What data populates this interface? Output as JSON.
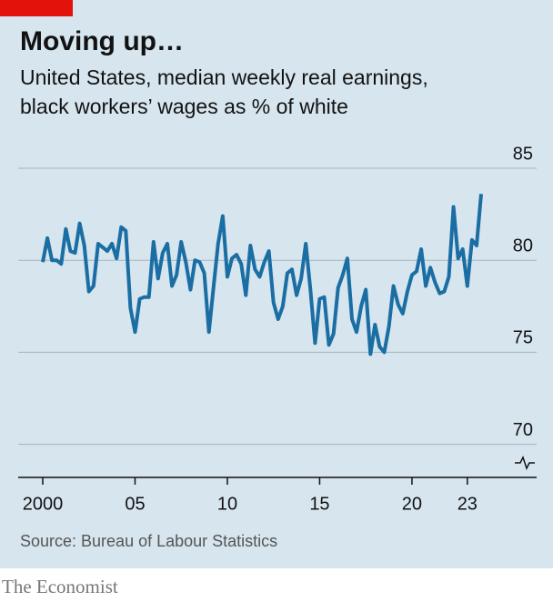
{
  "chart_data": {
    "type": "line",
    "title": "Moving up…",
    "subtitle": [
      "United States, median weekly real earnings,",
      "black workers’ wages as % of white"
    ],
    "source": "Source: Bureau of Labour Statistics",
    "brand": "The Economist",
    "x": [
      2000,
      2000.25,
      2000.5,
      2000.75,
      2001,
      2001.25,
      2001.5,
      2001.75,
      2002,
      2002.25,
      2002.5,
      2002.75,
      2003,
      2003.25,
      2003.5,
      2003.75,
      2004,
      2004.25,
      2004.5,
      2004.75,
      2005,
      2005.25,
      2005.5,
      2005.75,
      2006,
      2006.25,
      2006.5,
      2006.75,
      2007,
      2007.25,
      2007.5,
      2007.75,
      2008,
      2008.25,
      2008.5,
      2008.75,
      2009,
      2009.25,
      2009.5,
      2009.75,
      2010,
      2010.25,
      2010.5,
      2010.75,
      2011,
      2011.25,
      2011.5,
      2011.75,
      2012,
      2012.25,
      2012.5,
      2012.75,
      2013,
      2013.25,
      2013.5,
      2013.75,
      2014,
      2014.25,
      2014.5,
      2014.75,
      2015,
      2015.25,
      2015.5,
      2015.75,
      2016,
      2016.25,
      2016.5,
      2016.75,
      2017,
      2017.25,
      2017.5,
      2017.75,
      2018,
      2018.25,
      2018.5,
      2018.75,
      2019,
      2019.25,
      2019.5,
      2019.75,
      2020,
      2020.25,
      2020.5,
      2020.75,
      2021,
      2021.25,
      2021.5,
      2021.75,
      2022,
      2022.25,
      2022.5,
      2022.75,
      2023,
      2023.25,
      2023.5,
      2023.75
    ],
    "series": [
      {
        "color": "#1b6ea3",
        "values": [
          79.9,
          81.2,
          80.0,
          80.0,
          79.8,
          81.7,
          80.5,
          80.4,
          82.0,
          80.8,
          78.3,
          78.6,
          80.9,
          80.7,
          80.5,
          80.9,
          80.1,
          81.8,
          81.6,
          77.4,
          76.1,
          77.9,
          78.0,
          78.0,
          81.0,
          79.0,
          80.4,
          80.9,
          78.6,
          79.2,
          81.0,
          79.9,
          78.4,
          80.0,
          79.9,
          79.3,
          76.1,
          78.5,
          80.9,
          82.4,
          79.1,
          80.1,
          80.3,
          79.8,
          78.1,
          80.8,
          79.5,
          79.1,
          79.9,
          80.5,
          77.7,
          76.8,
          77.5,
          79.3,
          79.5,
          78.1,
          79.0,
          80.9,
          78.4,
          75.5,
          77.9,
          78.0,
          75.4,
          76.0,
          78.5,
          79.2,
          80.1,
          76.8,
          76.1,
          77.5,
          78.4,
          74.9,
          76.5,
          75.3,
          75.0,
          76.4,
          78.6,
          77.6,
          77.1,
          78.3,
          79.2,
          79.4,
          80.6,
          78.6,
          79.6,
          78.8,
          78.2,
          78.3,
          79.1,
          82.9,
          80.1,
          80.6,
          78.6,
          81.1,
          80.8,
          83.6
        ]
      }
    ],
    "xlim": [
      1998.67,
      2024.29
    ],
    "xticks": [
      {
        "value": 2000,
        "label": "2000"
      },
      {
        "value": 2005,
        "label": "05"
      },
      {
        "value": 2010,
        "label": "10"
      },
      {
        "value": 2015,
        "label": "15"
      },
      {
        "value": 2020,
        "label": "20"
      },
      {
        "value": 2023,
        "label": "23"
      }
    ],
    "ylim": [
      68.2,
      85
    ],
    "yticks": [
      70,
      75,
      80,
      85
    ],
    "grid": true
  }
}
